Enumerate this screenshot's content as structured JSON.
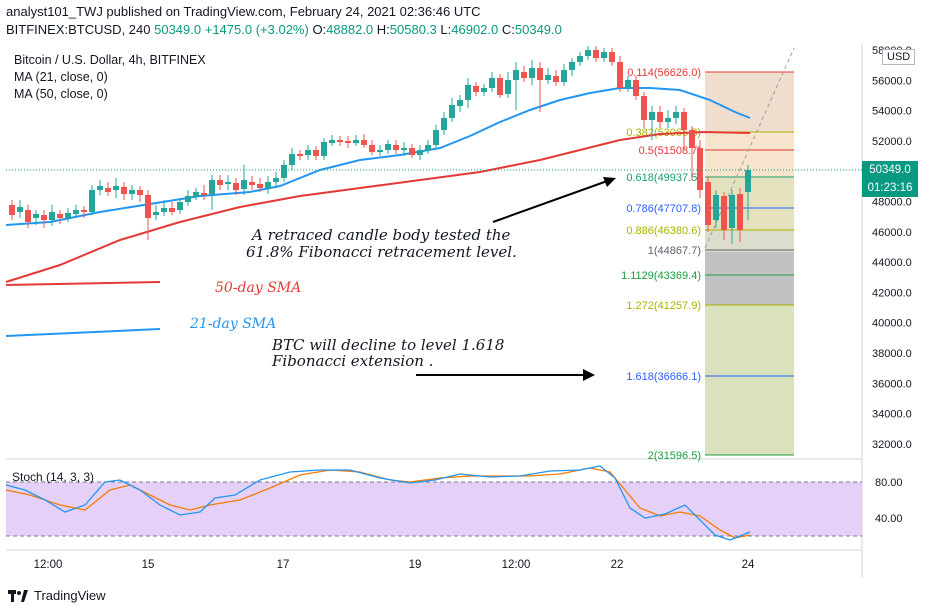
{
  "header": {
    "publisher_line": "analyst101_TWJ published on TradingView.com, February 24, 2021 02:36:46 UTC",
    "symbol_line": "BITFINEX:BTCUSD, 240",
    "last": "50349.0",
    "change": "+1475.0 (+3.02%)",
    "o_label": "O:",
    "o": "48882.0",
    "h_label": "H:",
    "h": "50580.3",
    "l_label": "L:",
    "l": "46902.0",
    "c_label": "C:",
    "c": "50349.0"
  },
  "legend": {
    "symbol": "Bitcoin / U.S. Dollar, 4h, BITFINEX",
    "ma21": "MA (21, close, 0)",
    "ma50": "MA (50, close, 0)"
  },
  "price_axis": {
    "currency": "USD",
    "ticks": [
      "58000.0",
      "56000.0",
      "54000.0",
      "52000.0",
      "50000.0",
      "48000.0",
      "46000.0",
      "44000.0",
      "42000.0",
      "40000.0",
      "38000.0",
      "36000.0",
      "34000.0",
      "32000.0"
    ],
    "last_price": "50349.0",
    "countdown": "01:23:16"
  },
  "stoch": {
    "label": "Stoch (14, 3, 3)",
    "ticks": [
      "80.00",
      "40.00"
    ]
  },
  "time_axis": [
    "12:00",
    "15",
    "17",
    "19",
    "12:00",
    "22",
    "24"
  ],
  "fib_levels": [
    {
      "label": "0.114(56626.0)",
      "color": "#e53935"
    },
    {
      "label": "0.382(53065.3)",
      "color": "#a9b200"
    },
    {
      "label": "0.5(51508.7)",
      "color": "#e53935"
    },
    {
      "label": "0.618(49937.5)",
      "color": "#1a9e6e"
    },
    {
      "label": "0.786(47707.8)",
      "color": "#2962ff"
    },
    {
      "label": "0.886(46380.6)",
      "color": "#a9b200"
    },
    {
      "label": "1(44867.7)",
      "color": "#5d606b"
    },
    {
      "label": "1.1129(43369.4)",
      "color": "#1a9e3e"
    },
    {
      "label": "1.272(41257.9)",
      "color": "#a9b200"
    },
    {
      "label": "1.618(36666.1)",
      "color": "#2962ff"
    },
    {
      "label": "2(31596.5)",
      "color": "#1a9e3e"
    }
  ],
  "annotations": {
    "retrace_line1": "A retraced candle body tested the",
    "retrace_line2": "61.8% Fibonacci retracement level.",
    "sma50": "50-day SMA",
    "sma21": "21-day SMA",
    "decline_line1": "BTC  will decline to level  1.618",
    "decline_line2": "Fibonacci extension ."
  },
  "footer": {
    "brand": "TradingView"
  },
  "colors": {
    "up": "#26a69a",
    "down": "#ef5350",
    "ma21": "#2196f3",
    "ma50": "#e53935",
    "stoch_k": "#2196f3",
    "stoch_d": "#f57c00",
    "stoch_band": "#e1c8f7"
  }
}
